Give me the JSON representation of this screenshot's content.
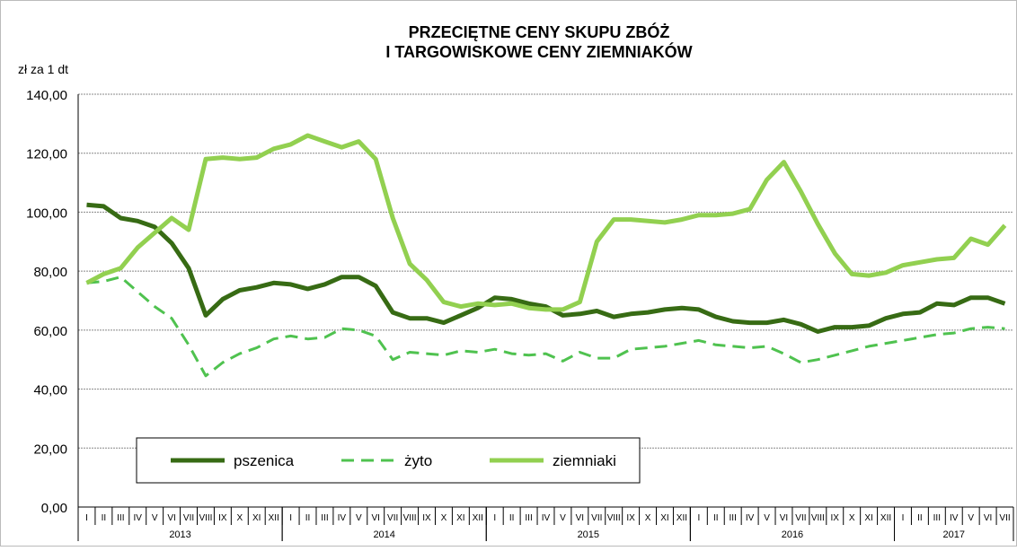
{
  "chart_data": {
    "type": "line",
    "title": [
      "PRZECIĘTNE CENY SKUPU ZBÓŻ",
      "I TARGOWISKOWE CENY ZIEMNIAKÓW"
    ],
    "y_label": "zł za 1 dt",
    "category_groups": [
      {
        "label": "2013",
        "categories": [
          "I",
          "II",
          "III",
          "IV",
          "V",
          "VI",
          "VII",
          "VIII",
          "IX",
          "X",
          "XI",
          "XII"
        ]
      },
      {
        "label": "2014",
        "categories": [
          "I",
          "II",
          "III",
          "IV",
          "V",
          "VI",
          "VII",
          "VIII",
          "IX",
          "X",
          "XI",
          "XII"
        ]
      },
      {
        "label": "2015",
        "categories": [
          "I",
          "II",
          "III",
          "IV",
          "V",
          "VI",
          "VII",
          "VIII",
          "IX",
          "X",
          "XI",
          "XII"
        ]
      },
      {
        "label": "2016",
        "categories": [
          "I",
          "II",
          "III",
          "IV",
          "V",
          "VI",
          "VII",
          "VIII",
          "IX",
          "X",
          "XI",
          "XII"
        ]
      },
      {
        "label": "2017",
        "categories": [
          "I",
          "II",
          "III",
          "IV",
          "V",
          "VI",
          "VII"
        ]
      }
    ],
    "series": [
      {
        "name": "pszenica",
        "color": "#376b14",
        "dash": false,
        "values": [
          102.5,
          102,
          98,
          97,
          95,
          89.5,
          81,
          65,
          70.5,
          73.5,
          74.5,
          76,
          75.5,
          74,
          75.5,
          78,
          78,
          75,
          66,
          64,
          64,
          62.5,
          65,
          67.5,
          71,
          70.5,
          69,
          68,
          65,
          65.5,
          66.5,
          64.5,
          65.5,
          66,
          67,
          67.5,
          67,
          64.5,
          63,
          62.5,
          62.5,
          63.5,
          62,
          59.5,
          61,
          61,
          61.5,
          64,
          65.5,
          66,
          69,
          68.5,
          71,
          71,
          69
        ]
      },
      {
        "name": "żyto",
        "color": "#4fc24f",
        "dash": true,
        "values": [
          76,
          76.5,
          78,
          73,
          68,
          64,
          55,
          44.5,
          49,
          52,
          54,
          57,
          58,
          57,
          57.5,
          60.5,
          60,
          58,
          50,
          52.5,
          52,
          51.5,
          53,
          52.5,
          53.5,
          52,
          51.5,
          52,
          49.5,
          52.5,
          50.5,
          50.5,
          53.5,
          54,
          54.5,
          55.5,
          56.5,
          55,
          54.5,
          54,
          54.5,
          52,
          49,
          50,
          51.5,
          53,
          54.5,
          55.5,
          56.5,
          57.5,
          58.5,
          59,
          60.5,
          61,
          60.5
        ]
      },
      {
        "name": "ziemniaki",
        "color": "#92d050",
        "dash": false,
        "values": [
          76,
          79,
          81,
          88,
          93,
          98,
          94,
          118,
          118.5,
          118,
          118.5,
          121.5,
          123,
          126,
          124,
          122,
          124,
          118,
          98,
          82.5,
          77,
          69.5,
          68,
          69,
          68.5,
          69,
          67.5,
          67,
          67,
          69.5,
          90,
          97.5,
          97.5,
          97,
          96.5,
          97.5,
          99,
          99,
          99.5,
          101,
          111,
          117,
          107,
          96,
          86,
          79,
          78.5,
          79.5,
          82,
          83,
          84,
          84.5,
          91,
          89,
          95.5
        ]
      }
    ],
    "ylim": [
      0,
      140
    ],
    "yticks": [
      {
        "value": 0,
        "label": "0,00"
      },
      {
        "value": 20,
        "label": "20,00"
      },
      {
        "value": 40,
        "label": "40,00"
      },
      {
        "value": 60,
        "label": "60,00"
      },
      {
        "value": 80,
        "label": "80,00"
      },
      {
        "value": 100,
        "label": "100,00"
      },
      {
        "value": 120,
        "label": "120,00"
      },
      {
        "value": 140,
        "label": "140,00"
      }
    ],
    "grid": true
  }
}
